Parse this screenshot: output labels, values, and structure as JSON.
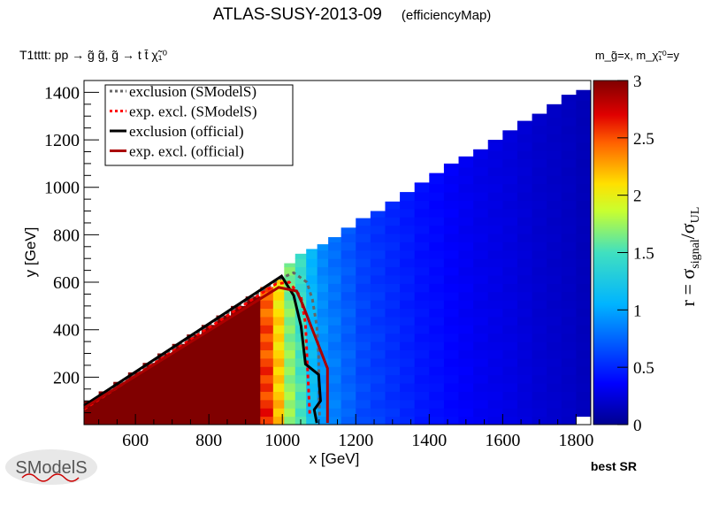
{
  "chart_data": {
    "type": "heatmap",
    "title": "ATLAS-SUSY-2013-09",
    "subtitle": "(efficiencyMap)",
    "process_label": "T1tttt: pp → g̃ g̃, g̃ → t t̄ χ̃₁⁰",
    "mass_label": "m_g̃=x, m_χ̃₁⁰=y",
    "xlabel": "x [GeV]",
    "ylabel": "y [GeV]",
    "zlabel": "r = σsignal/σUL",
    "zlabel_main": "r = σ",
    "zlabel_sub1": "signal",
    "zlabel_mid": "/σ",
    "zlabel_sub2": "UL",
    "footer": "best SR",
    "xlim": [
      460,
      1840
    ],
    "ylim": [
      0,
      1450
    ],
    "zlim": [
      0,
      3
    ],
    "xticks": [
      "600",
      "800",
      "1000",
      "1200",
      "1400",
      "1600",
      "1800"
    ],
    "xtick_values": [
      600,
      800,
      1000,
      1200,
      1400,
      1600,
      1800
    ],
    "yticks": [
      "200",
      "400",
      "600",
      "800",
      "1000",
      "1200",
      "1400"
    ],
    "ytick_values": [
      200,
      400,
      600,
      800,
      1000,
      1200,
      1400
    ],
    "zticks": [
      "0",
      "0.5",
      "1",
      "1.5",
      "2",
      "2.5",
      "3"
    ],
    "ztick_values": [
      0,
      0.5,
      1,
      1.5,
      2,
      2.5,
      3
    ],
    "grid": false,
    "legend_position": "top-left",
    "columns": {
      "x": [
        440,
        480,
        520,
        560,
        600,
        640,
        680,
        720,
        760,
        800,
        840,
        880,
        920,
        960,
        990,
        1020,
        1050,
        1080,
        1110,
        1140,
        1180,
        1220,
        1260,
        1300,
        1340,
        1380,
        1420,
        1460,
        1500,
        1540,
        1580,
        1620,
        1660,
        1700,
        1740,
        1780,
        1820
      ],
      "ymax": [
        60,
        100,
        140,
        180,
        220,
        260,
        300,
        340,
        380,
        420,
        460,
        500,
        540,
        580,
        610,
        680,
        720,
        740,
        760,
        790,
        830,
        870,
        900,
        940,
        980,
        1020,
        1060,
        1100,
        1130,
        1160,
        1200,
        1240,
        1280,
        1310,
        1350,
        1390,
        1410
      ],
      "r": [
        3,
        3,
        3,
        3,
        3,
        3,
        3,
        3,
        3,
        3,
        3,
        3,
        3,
        2.6,
        2.2,
        1.75,
        1.55,
        1.15,
        0.95,
        0.85,
        0.75,
        0.65,
        0.6,
        0.55,
        0.5,
        0.45,
        0.42,
        0.38,
        0.35,
        0.32,
        0.3,
        0.28,
        0.25,
        0.22,
        0.2,
        0.18,
        0.15
      ]
    },
    "series": [
      {
        "name": "exclusion (SModelS)",
        "color": "#666666",
        "style": "dotted",
        "points": [
          [
            460,
            75
          ],
          [
            1000,
            620
          ],
          [
            1010,
            626
          ],
          [
            1031,
            640
          ],
          [
            1067,
            600
          ],
          [
            1082,
            526
          ],
          [
            1094,
            415
          ],
          [
            1099,
            293
          ],
          [
            1101,
            33
          ]
        ]
      },
      {
        "name": "exp. excl. (SModelS)",
        "color": "#ff0000",
        "style": "dotted",
        "points": [
          [
            460,
            65
          ],
          [
            983,
            593
          ],
          [
            1019,
            600
          ],
          [
            1051,
            537
          ],
          [
            1063,
            426
          ],
          [
            1067,
            293
          ],
          [
            1075,
            33
          ]
        ]
      },
      {
        "name": "exclusion (official)",
        "color": "#000000",
        "style": "solid",
        "points": [
          [
            460,
            80
          ],
          [
            998,
            626
          ],
          [
            1031,
            544
          ],
          [
            1051,
            415
          ],
          [
            1063,
            255
          ],
          [
            1099,
            211
          ],
          [
            1104,
            100
          ],
          [
            1087,
            63
          ],
          [
            1094,
            7
          ]
        ]
      },
      {
        "name": "exp. excl. (official)",
        "color": "#aa0000",
        "style": "solid",
        "points": [
          [
            460,
            70
          ],
          [
            990,
            578
          ],
          [
            1039,
            563
          ],
          [
            1055,
            507
          ],
          [
            1123,
            237
          ],
          [
            1123,
            7
          ]
        ]
      }
    ]
  },
  "logo": "SModelS"
}
